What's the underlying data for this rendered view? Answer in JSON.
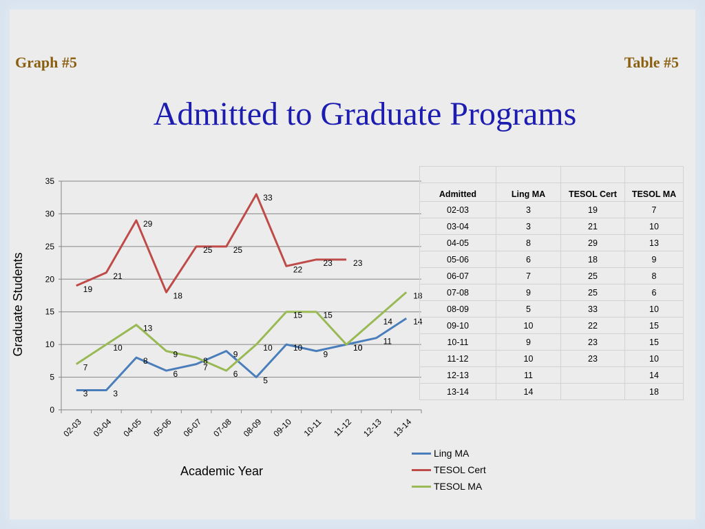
{
  "header": {
    "left_label": "Graph #5",
    "right_label": "Table #5",
    "title": "Admitted to Graduate Programs"
  },
  "colors": {
    "ling_ma": "#4a7ebb",
    "tesol_cert": "#be4b48",
    "tesol_ma": "#98b954",
    "axis": "#868686",
    "grid": "#868686"
  },
  "chart_data": {
    "type": "line",
    "categories": [
      "02-03",
      "03-04",
      "04-05",
      "05-06",
      "06-07",
      "07-08",
      "08-09",
      "09-10",
      "10-11",
      "11-12",
      "12-13",
      "13-14"
    ],
    "series": [
      {
        "name": "Ling MA",
        "values": [
          3,
          3,
          8,
          6,
          7,
          9,
          5,
          10,
          9,
          10,
          11,
          14
        ]
      },
      {
        "name": "TESOL Cert",
        "values": [
          19,
          21,
          29,
          18,
          25,
          25,
          33,
          22,
          23,
          23,
          null,
          null
        ]
      },
      {
        "name": "TESOL MA",
        "values": [
          7,
          10,
          13,
          9,
          8,
          6,
          10,
          15,
          15,
          10,
          14,
          18
        ]
      }
    ],
    "xlabel": "Academic Year",
    "ylabel": "Graduate Students",
    "ylim": [
      0,
      35
    ],
    "yticks": [
      0,
      5,
      10,
      15,
      20,
      25,
      30,
      35
    ],
    "grid": true,
    "legend": "bottom-right"
  },
  "table": {
    "headers": [
      "Admitted",
      "Ling MA",
      "TESOL Cert",
      "TESOL MA"
    ],
    "rows": [
      [
        "02-03",
        "3",
        "19",
        "7"
      ],
      [
        "03-04",
        "3",
        "21",
        "10"
      ],
      [
        "04-05",
        "8",
        "29",
        "13"
      ],
      [
        "05-06",
        "6",
        "18",
        "9"
      ],
      [
        "06-07",
        "7",
        "25",
        "8"
      ],
      [
        "07-08",
        "9",
        "25",
        "6"
      ],
      [
        "08-09",
        "5",
        "33",
        "10"
      ],
      [
        "09-10",
        "10",
        "22",
        "15"
      ],
      [
        "10-11",
        "9",
        "23",
        "15"
      ],
      [
        "11-12",
        "10",
        "23",
        "10"
      ],
      [
        "12-13",
        "11",
        "",
        "14"
      ],
      [
        "13-14",
        "14",
        "",
        "18"
      ]
    ]
  }
}
